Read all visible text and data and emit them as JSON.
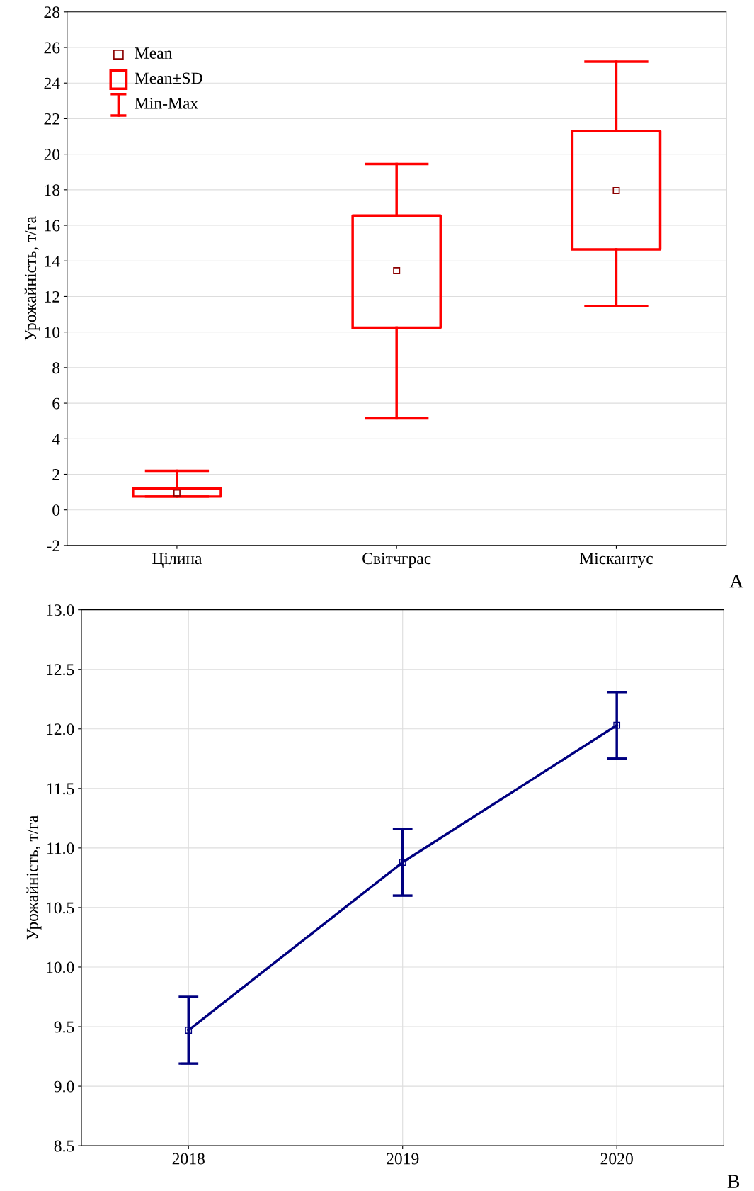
{
  "chart_data": [
    {
      "type": "box",
      "ylabel": "Урожайність, т/га",
      "categories": [
        "Цілина",
        "Світчграс",
        "Міскантус"
      ],
      "color": "#ff0000",
      "boxes": [
        {
          "low": 0.75,
          "q1": 0.75,
          "median": 0.95,
          "q3": 1.2,
          "high": 2.2
        },
        {
          "low": 5.15,
          "q1": 10.25,
          "median": 13.45,
          "q3": 16.55,
          "high": 19.45
        },
        {
          "low": 11.45,
          "q1": 14.65,
          "median": 17.95,
          "q3": 21.3,
          "high": 25.2
        }
      ],
      "ylim": [
        -2,
        28
      ],
      "yticks": [
        -2,
        0,
        2,
        4,
        6,
        8,
        10,
        12,
        14,
        16,
        18,
        20,
        22,
        24,
        26,
        28
      ],
      "grid": "y",
      "annotations": [
        "Mean",
        "Mean±SD",
        "Min-Max",
        "A"
      ]
    },
    {
      "type": "line",
      "ylabel": "Урожайність, т/га",
      "categories": [
        "2018",
        "2019",
        "2020"
      ],
      "series": [
        {
          "color": "#000080",
          "values": [
            9.47,
            10.88,
            12.03
          ],
          "errors": [
            0.28,
            0.28,
            0.28
          ]
        }
      ],
      "ylim": [
        8.5,
        13.0
      ],
      "yticks": [
        {
          "value": 8.5,
          "label": "8.5"
        },
        {
          "value": 9.0,
          "label": "9.0"
        },
        {
          "value": 9.5,
          "label": "9.5"
        },
        {
          "value": 10.0,
          "label": "10.0"
        },
        {
          "value": 10.5,
          "label": "10.5"
        },
        {
          "value": 11.0,
          "label": "11.0"
        },
        {
          "value": 11.5,
          "label": "11.5"
        },
        {
          "value": 12.0,
          "label": "12.0"
        },
        {
          "value": 12.5,
          "label": "12.5"
        },
        {
          "value": 13.0,
          "label": "13.0"
        }
      ],
      "grid": true,
      "marker": "square",
      "annotations": [
        "B"
      ]
    }
  ]
}
